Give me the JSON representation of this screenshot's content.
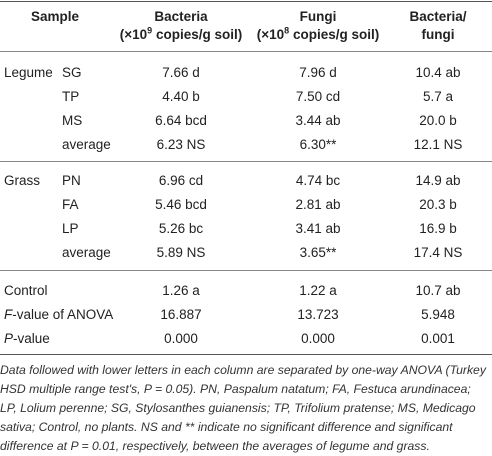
{
  "header": {
    "sample": "Sample",
    "bacteria_title": "Bacteria",
    "bacteria_unit_pre": "(×10",
    "bacteria_unit_exp": "9",
    "bacteria_unit_post": " copies/g soil)",
    "fungi_title": "Fungi",
    "fungi_unit_pre": "(×10",
    "fungi_unit_exp": "8",
    "fungi_unit_post": " copies/g soil)",
    "ratio_title": "Bacteria/",
    "ratio_sub": "fungi"
  },
  "groups": [
    {
      "name": "Legume",
      "rows": [
        {
          "label": "SG",
          "bacteria": "7.66 d",
          "fungi": "7.96 d",
          "ratio": "10.4 ab"
        },
        {
          "label": "TP",
          "bacteria": "4.40 b",
          "fungi": "7.50 cd",
          "ratio": "5.7 a"
        },
        {
          "label": "MS",
          "bacteria": "6.64 bcd",
          "fungi": "3.44 ab",
          "ratio": "20.0 b"
        },
        {
          "label": "average",
          "bacteria": "6.23 NS",
          "fungi": "6.30**",
          "ratio": "12.1 NS"
        }
      ]
    },
    {
      "name": "Grass",
      "rows": [
        {
          "label": "PN",
          "bacteria": "6.96 cd",
          "fungi": "4.74 bc",
          "ratio": "14.9 ab"
        },
        {
          "label": "FA",
          "bacteria": "5.46 bcd",
          "fungi": "2.81 ab",
          "ratio": "20.3 b"
        },
        {
          "label": "LP",
          "bacteria": "5.26 bc",
          "fungi": "3.41 ab",
          "ratio": "16.9 b"
        },
        {
          "label": "average",
          "bacteria": "5.89 NS",
          "fungi": "3.65**",
          "ratio": "17.4 NS"
        }
      ]
    }
  ],
  "summary": [
    {
      "label": "Control",
      "bacteria": "1.26 a",
      "fungi": "1.22 a",
      "ratio": "10.7 ab"
    },
    {
      "label_italic": "F",
      "label": "-value of ANOVA",
      "bacteria": "16.887",
      "fungi": "13.723",
      "ratio": "5.948"
    },
    {
      "label_italic": "P",
      "label": "-value",
      "bacteria": "0.000",
      "fungi": "0.000",
      "ratio": "0.001"
    }
  ],
  "footnote": "Data followed with lower letters in each column are separated by one-way ANOVA (Turkey HSD multiple range test's, P = 0.05). PN, Paspalum natatum; FA, Festuca arundinacea; LP, Lolium perenne; SG, Stylosanthes guianensis; TP, Trifolium pratense; MS, Medicago sativa; Control, no plants. NS and ** indicate no significant difference and significant difference at P = 0.01, respectively, between the averages of legume and grass."
}
